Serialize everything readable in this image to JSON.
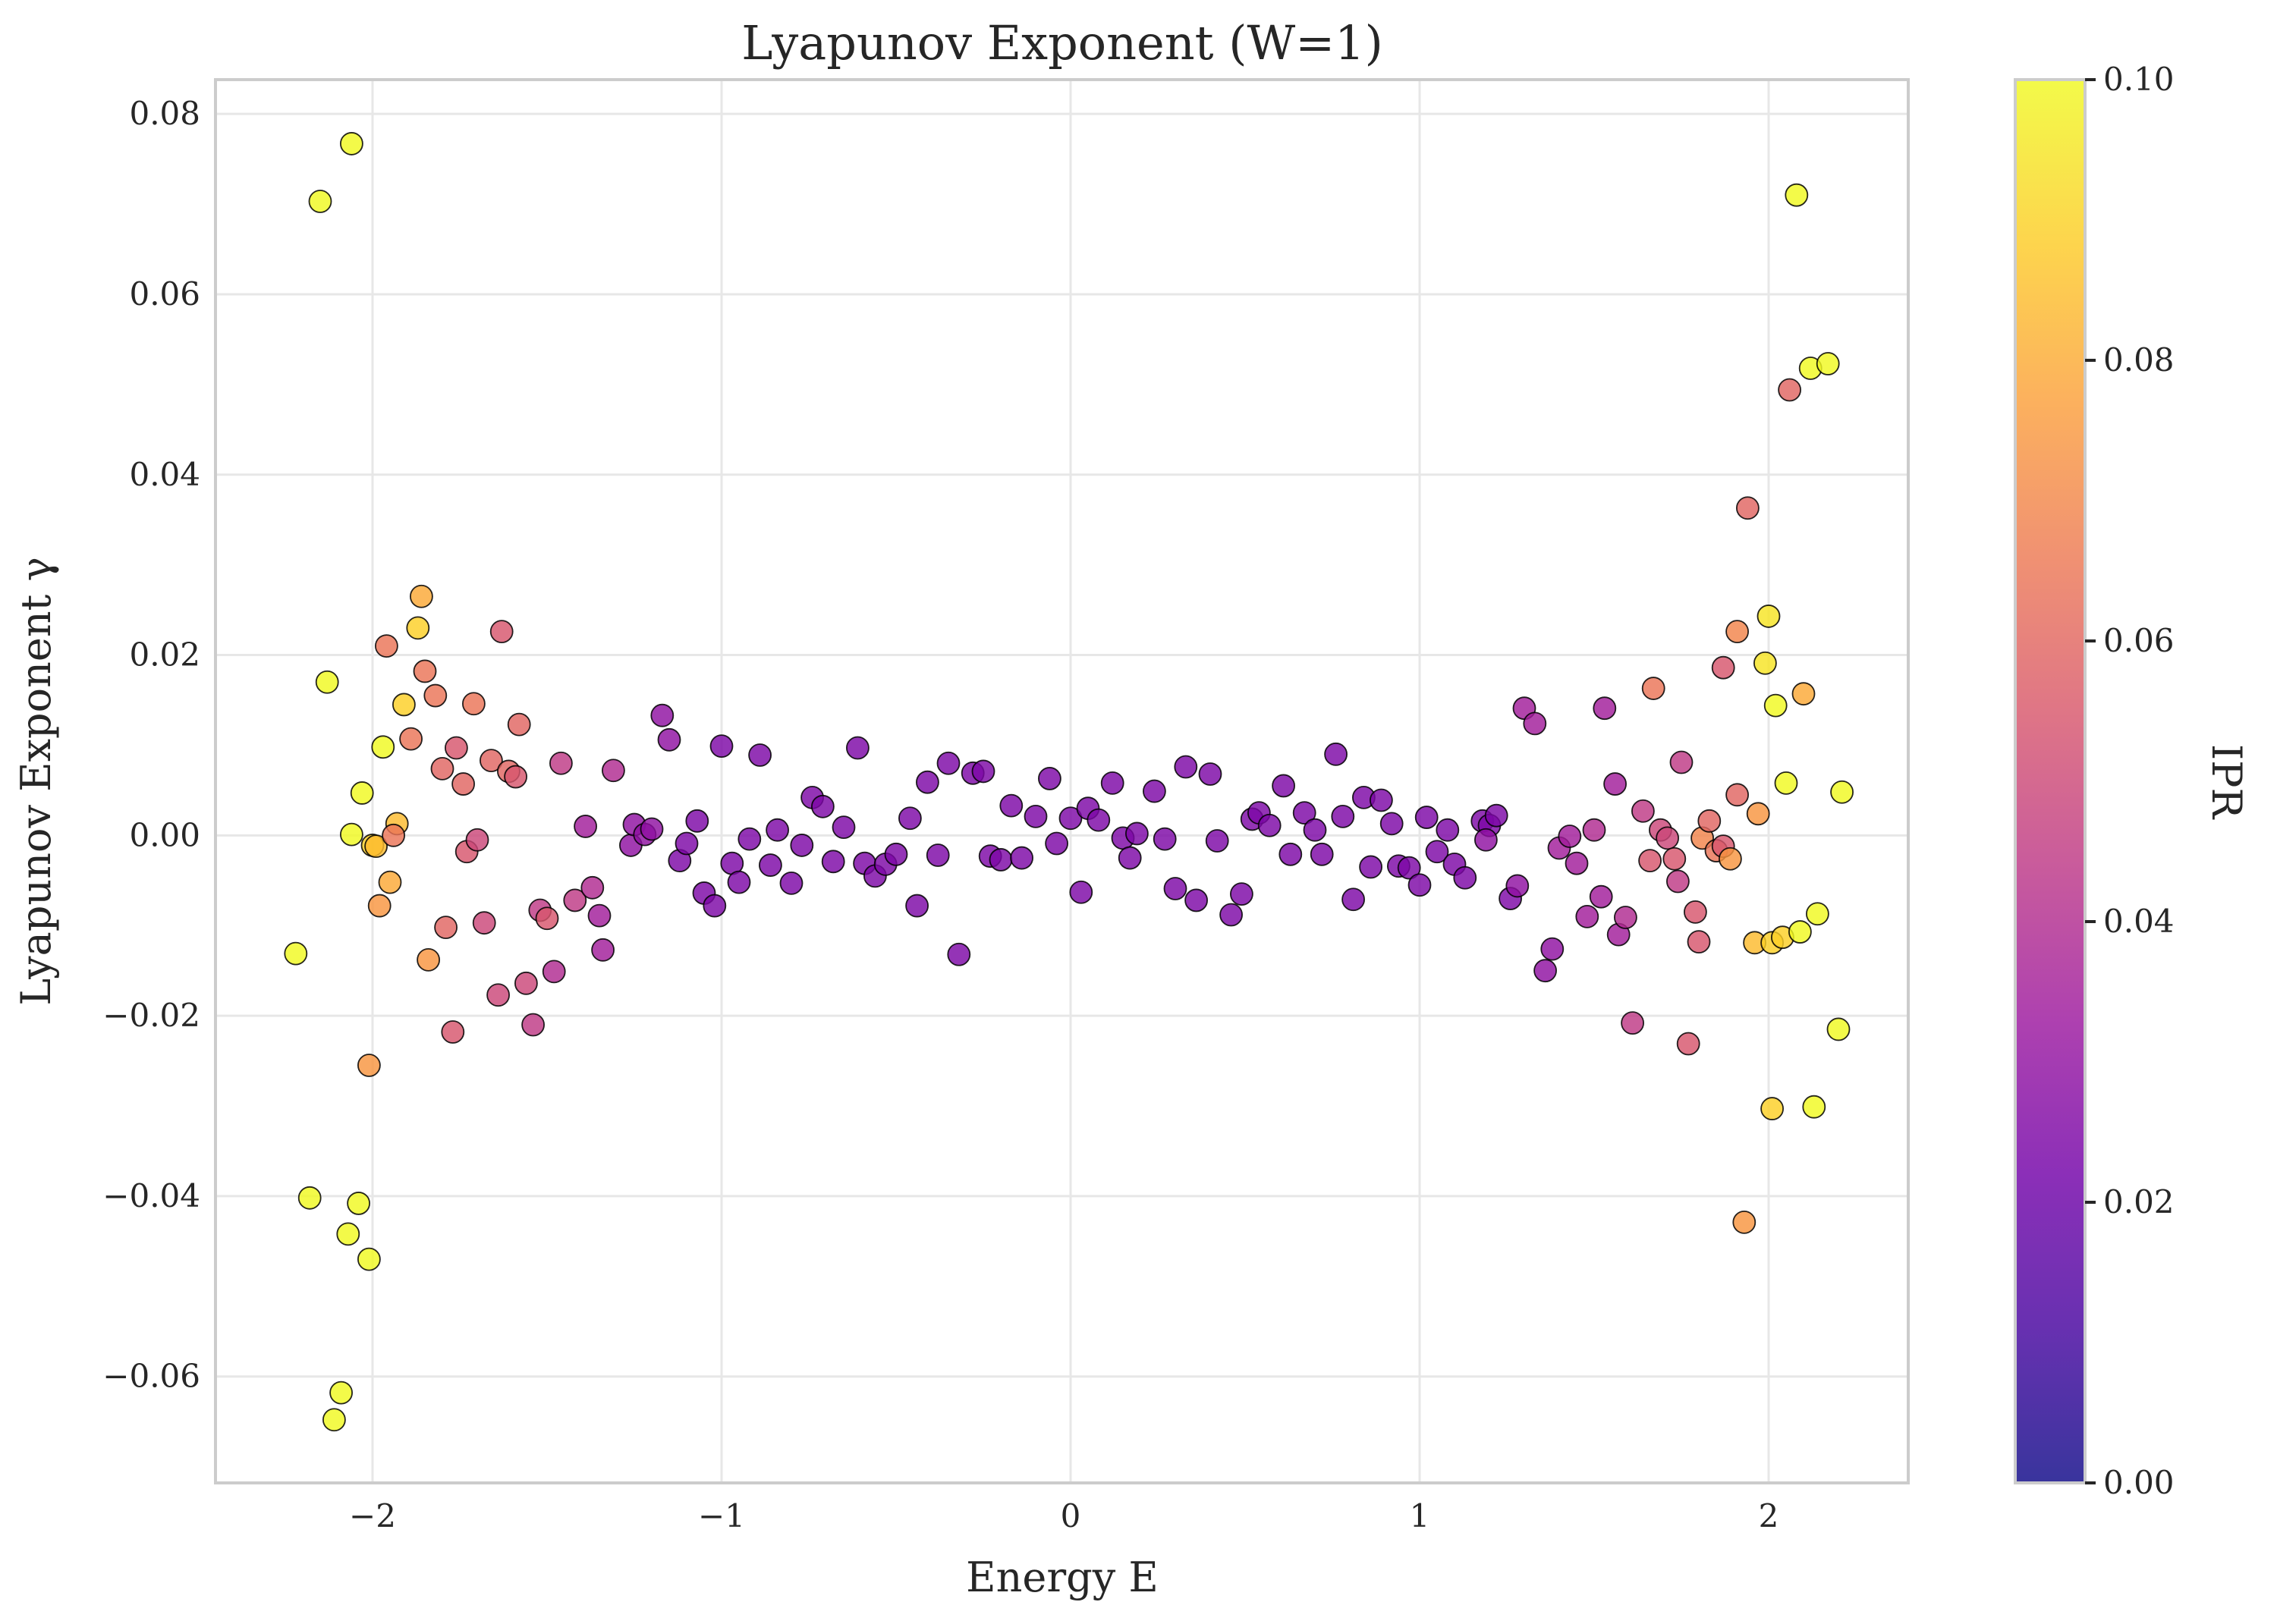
{
  "chart_data": {
    "type": "scatter",
    "title": "Lyapunov Exponent (W=1)",
    "xlabel": "Energy E",
    "ylabel": "Lyapunov Exponent γ",
    "xlim": [
      -2.45,
      2.4
    ],
    "ylim": [
      -0.0718,
      0.0838
    ],
    "xticks": [
      -2,
      -1,
      0,
      1,
      2
    ],
    "xticklabels": [
      "−2",
      "−1",
      "0",
      "1",
      "2"
    ],
    "yticks": [
      -0.06,
      -0.04,
      -0.02,
      0.0,
      0.02,
      0.04,
      0.06,
      0.08
    ],
    "yticklabels": [
      "−0.06",
      "−0.04",
      "−0.02",
      "0.00",
      "0.02",
      "0.04",
      "0.06",
      "0.08"
    ],
    "grid": true,
    "colorbar": {
      "label": "IPR",
      "colormap": "plasma",
      "range": [
        0.0,
        0.1
      ],
      "ticks": [
        0.0,
        0.02,
        0.04,
        0.06,
        0.08,
        0.1
      ],
      "ticklabels": [
        "0.00",
        "0.02",
        "0.04",
        "0.06",
        "0.08",
        "0.10"
      ],
      "colors": [
        "#0d0887",
        "#46039f",
        "#7201a8",
        "#9c179e",
        "#bd3786",
        "#d8576b",
        "#ed7953",
        "#fb9f3a",
        "#fdca26",
        "#f0f921"
      ]
    },
    "points": [
      {
        "x": -2.22,
        "y": -0.0131,
        "c": 0.1
      },
      {
        "x": -2.15,
        "y": 0.0703,
        "c": 0.1
      },
      {
        "x": -2.06,
        "y": 0.0767,
        "c": 0.1
      },
      {
        "x": -2.13,
        "y": 0.017,
        "c": 0.1
      },
      {
        "x": -2.18,
        "y": -0.0402,
        "c": 0.1
      },
      {
        "x": -2.04,
        "y": -0.0408,
        "c": 0.1
      },
      {
        "x": -2.07,
        "y": -0.0442,
        "c": 0.1
      },
      {
        "x": -2.01,
        "y": -0.047,
        "c": 0.1
      },
      {
        "x": -2.09,
        "y": -0.0618,
        "c": 0.1
      },
      {
        "x": -2.11,
        "y": -0.0648,
        "c": 0.1
      },
      {
        "x": -2.06,
        "y": 0.0001,
        "c": 0.1
      },
      {
        "x": -2.03,
        "y": 0.0047,
        "c": 0.1
      },
      {
        "x": -1.97,
        "y": 0.0098,
        "c": 0.1
      },
      {
        "x": -2.0,
        "y": -0.0011,
        "c": 0.09
      },
      {
        "x": -1.99,
        "y": -0.0012,
        "c": 0.085
      },
      {
        "x": -1.93,
        "y": 0.0013,
        "c": 0.085
      },
      {
        "x": -1.91,
        "y": 0.0145,
        "c": 0.09
      },
      {
        "x": -1.87,
        "y": 0.023,
        "c": 0.09
      },
      {
        "x": -1.86,
        "y": 0.0265,
        "c": 0.08
      },
      {
        "x": -1.95,
        "y": -0.0052,
        "c": 0.08
      },
      {
        "x": -1.98,
        "y": -0.0078,
        "c": 0.075
      },
      {
        "x": -2.01,
        "y": -0.0255,
        "c": 0.075
      },
      {
        "x": -1.84,
        "y": -0.0138,
        "c": 0.075
      },
      {
        "x": -1.96,
        "y": 0.021,
        "c": 0.065
      },
      {
        "x": -1.89,
        "y": 0.0107,
        "c": 0.065
      },
      {
        "x": -1.85,
        "y": 0.0182,
        "c": 0.065
      },
      {
        "x": -1.82,
        "y": 0.0155,
        "c": 0.065
      },
      {
        "x": -1.8,
        "y": 0.0074,
        "c": 0.06
      },
      {
        "x": -1.94,
        "y": 0.0,
        "c": 0.065
      },
      {
        "x": -1.79,
        "y": -0.0102,
        "c": 0.06
      },
      {
        "x": -1.77,
        "y": -0.0218,
        "c": 0.055
      },
      {
        "x": -1.76,
        "y": 0.0097,
        "c": 0.055
      },
      {
        "x": -1.74,
        "y": 0.0057,
        "c": 0.06
      },
      {
        "x": -1.71,
        "y": 0.0146,
        "c": 0.065
      },
      {
        "x": -1.73,
        "y": -0.0018,
        "c": 0.055
      },
      {
        "x": -1.7,
        "y": -0.0005,
        "c": 0.05
      },
      {
        "x": -1.68,
        "y": -0.0097,
        "c": 0.05
      },
      {
        "x": -1.66,
        "y": 0.0083,
        "c": 0.06
      },
      {
        "x": -1.64,
        "y": -0.0177,
        "c": 0.05
      },
      {
        "x": -1.63,
        "y": 0.0226,
        "c": 0.055
      },
      {
        "x": -1.61,
        "y": 0.0071,
        "c": 0.06
      },
      {
        "x": -1.59,
        "y": 0.0065,
        "c": 0.055
      },
      {
        "x": -1.58,
        "y": 0.0123,
        "c": 0.06
      },
      {
        "x": -1.56,
        "y": -0.0164,
        "c": 0.05
      },
      {
        "x": -1.54,
        "y": -0.021,
        "c": 0.045
      },
      {
        "x": -1.52,
        "y": -0.0083,
        "c": 0.045
      },
      {
        "x": -1.5,
        "y": -0.0092,
        "c": 0.055
      },
      {
        "x": -1.48,
        "y": -0.0151,
        "c": 0.04
      },
      {
        "x": -1.46,
        "y": 0.008,
        "c": 0.045
      },
      {
        "x": -1.42,
        "y": -0.0072,
        "c": 0.045
      },
      {
        "x": -1.39,
        "y": 0.001,
        "c": 0.035
      },
      {
        "x": -1.37,
        "y": -0.0058,
        "c": 0.04
      },
      {
        "x": -1.35,
        "y": -0.0089,
        "c": 0.035
      },
      {
        "x": -1.34,
        "y": -0.0127,
        "c": 0.035
      },
      {
        "x": -1.31,
        "y": 0.0072,
        "c": 0.04
      },
      {
        "x": -1.26,
        "y": -0.0011,
        "c": 0.03
      },
      {
        "x": -1.25,
        "y": 0.0012,
        "c": 0.03
      },
      {
        "x": -1.22,
        "y": 0.0001,
        "c": 0.03
      },
      {
        "x": -1.2,
        "y": 0.0007,
        "c": 0.03
      },
      {
        "x": -1.17,
        "y": 0.0133,
        "c": 0.03
      },
      {
        "x": -1.15,
        "y": 0.0106,
        "c": 0.03
      },
      {
        "x": -1.12,
        "y": -0.0028,
        "c": 0.025
      },
      {
        "x": -1.1,
        "y": -0.0009,
        "c": 0.025
      },
      {
        "x": -1.07,
        "y": 0.0016,
        "c": 0.025
      },
      {
        "x": -1.05,
        "y": -0.0064,
        "c": 0.025
      },
      {
        "x": -1.02,
        "y": -0.0078,
        "c": 0.025
      },
      {
        "x": -1.0,
        "y": 0.0099,
        "c": 0.025
      },
      {
        "x": -0.97,
        "y": -0.0031,
        "c": 0.025
      },
      {
        "x": -0.95,
        "y": -0.0052,
        "c": 0.025
      },
      {
        "x": -0.92,
        "y": -0.0004,
        "c": 0.025
      },
      {
        "x": -0.89,
        "y": 0.0089,
        "c": 0.025
      },
      {
        "x": -0.86,
        "y": -0.0033,
        "c": 0.025
      },
      {
        "x": -0.84,
        "y": 0.0006,
        "c": 0.025
      },
      {
        "x": -0.8,
        "y": -0.0053,
        "c": 0.025
      },
      {
        "x": -0.77,
        "y": -0.0011,
        "c": 0.025
      },
      {
        "x": -0.74,
        "y": 0.0042,
        "c": 0.025
      },
      {
        "x": -0.71,
        "y": 0.0032,
        "c": 0.025
      },
      {
        "x": -0.68,
        "y": -0.0029,
        "c": 0.025
      },
      {
        "x": -0.65,
        "y": 0.0009,
        "c": 0.025
      },
      {
        "x": -0.61,
        "y": 0.0097,
        "c": 0.025
      },
      {
        "x": -0.59,
        "y": -0.0031,
        "c": 0.025
      },
      {
        "x": -0.56,
        "y": -0.0045,
        "c": 0.025
      },
      {
        "x": -0.53,
        "y": -0.0032,
        "c": 0.025
      },
      {
        "x": -0.5,
        "y": -0.0021,
        "c": 0.025
      },
      {
        "x": -0.46,
        "y": 0.0019,
        "c": 0.025
      },
      {
        "x": -0.44,
        "y": -0.0078,
        "c": 0.025
      },
      {
        "x": -0.41,
        "y": 0.0059,
        "c": 0.025
      },
      {
        "x": -0.38,
        "y": -0.0022,
        "c": 0.025
      },
      {
        "x": -0.35,
        "y": 0.008,
        "c": 0.025
      },
      {
        "x": -0.32,
        "y": -0.0132,
        "c": 0.025
      },
      {
        "x": -0.28,
        "y": 0.0069,
        "c": 0.025
      },
      {
        "x": -0.25,
        "y": 0.0071,
        "c": 0.025
      },
      {
        "x": -0.23,
        "y": -0.0023,
        "c": 0.025
      },
      {
        "x": -0.2,
        "y": -0.0027,
        "c": 0.025
      },
      {
        "x": -0.17,
        "y": 0.0033,
        "c": 0.025
      },
      {
        "x": -0.14,
        "y": -0.0025,
        "c": 0.025
      },
      {
        "x": -0.1,
        "y": 0.0021,
        "c": 0.025
      },
      {
        "x": -0.06,
        "y": 0.0063,
        "c": 0.025
      },
      {
        "x": -0.04,
        "y": -0.0009,
        "c": 0.025
      },
      {
        "x": 0.0,
        "y": 0.0019,
        "c": 0.025
      },
      {
        "x": 0.03,
        "y": -0.0063,
        "c": 0.025
      },
      {
        "x": 0.05,
        "y": 0.003,
        "c": 0.025
      },
      {
        "x": 0.08,
        "y": 0.0017,
        "c": 0.025
      },
      {
        "x": 0.12,
        "y": 0.0058,
        "c": 0.025
      },
      {
        "x": 0.15,
        "y": -0.0003,
        "c": 0.025
      },
      {
        "x": 0.17,
        "y": -0.0025,
        "c": 0.025
      },
      {
        "x": 0.19,
        "y": 0.0002,
        "c": 0.025
      },
      {
        "x": 0.24,
        "y": 0.0049,
        "c": 0.025
      },
      {
        "x": 0.27,
        "y": -0.0004,
        "c": 0.025
      },
      {
        "x": 0.3,
        "y": -0.0059,
        "c": 0.025
      },
      {
        "x": 0.33,
        "y": 0.0076,
        "c": 0.025
      },
      {
        "x": 0.36,
        "y": -0.0072,
        "c": 0.025
      },
      {
        "x": 0.4,
        "y": 0.0068,
        "c": 0.025
      },
      {
        "x": 0.42,
        "y": -0.0006,
        "c": 0.025
      },
      {
        "x": 0.46,
        "y": -0.0088,
        "c": 0.025
      },
      {
        "x": 0.49,
        "y": -0.0065,
        "c": 0.025
      },
      {
        "x": 0.52,
        "y": 0.0018,
        "c": 0.025
      },
      {
        "x": 0.54,
        "y": 0.0025,
        "c": 0.025
      },
      {
        "x": 0.57,
        "y": 0.0011,
        "c": 0.025
      },
      {
        "x": 0.61,
        "y": 0.0055,
        "c": 0.025
      },
      {
        "x": 0.63,
        "y": -0.0021,
        "c": 0.025
      },
      {
        "x": 0.67,
        "y": 0.0025,
        "c": 0.025
      },
      {
        "x": 0.7,
        "y": 0.0006,
        "c": 0.025
      },
      {
        "x": 0.72,
        "y": -0.0021,
        "c": 0.025
      },
      {
        "x": 0.76,
        "y": 0.009,
        "c": 0.025
      },
      {
        "x": 0.78,
        "y": 0.0021,
        "c": 0.025
      },
      {
        "x": 0.81,
        "y": -0.0071,
        "c": 0.025
      },
      {
        "x": 0.84,
        "y": 0.0042,
        "c": 0.025
      },
      {
        "x": 0.86,
        "y": -0.0035,
        "c": 0.025
      },
      {
        "x": 0.89,
        "y": 0.0039,
        "c": 0.025
      },
      {
        "x": 0.92,
        "y": 0.0013,
        "c": 0.025
      },
      {
        "x": 0.94,
        "y": -0.0034,
        "c": 0.025
      },
      {
        "x": 0.97,
        "y": -0.0036,
        "c": 0.025
      },
      {
        "x": 1.0,
        "y": -0.0055,
        "c": 0.025
      },
      {
        "x": 1.02,
        "y": 0.002,
        "c": 0.025
      },
      {
        "x": 1.05,
        "y": -0.0018,
        "c": 0.025
      },
      {
        "x": 1.08,
        "y": 0.0006,
        "c": 0.025
      },
      {
        "x": 1.1,
        "y": -0.0032,
        "c": 0.025
      },
      {
        "x": 1.13,
        "y": -0.0047,
        "c": 0.025
      },
      {
        "x": 1.18,
        "y": 0.0016,
        "c": 0.025
      },
      {
        "x": 1.2,
        "y": 0.0011,
        "c": 0.025
      },
      {
        "x": 1.22,
        "y": 0.0022,
        "c": 0.025
      },
      {
        "x": 1.19,
        "y": -0.0005,
        "c": 0.03
      },
      {
        "x": 1.26,
        "y": -0.007,
        "c": 0.025
      },
      {
        "x": 1.28,
        "y": -0.0056,
        "c": 0.03
      },
      {
        "x": 1.3,
        "y": 0.0141,
        "c": 0.035
      },
      {
        "x": 1.33,
        "y": 0.0124,
        "c": 0.035
      },
      {
        "x": 1.36,
        "y": -0.015,
        "c": 0.03
      },
      {
        "x": 1.38,
        "y": -0.0126,
        "c": 0.03
      },
      {
        "x": 1.4,
        "y": -0.0014,
        "c": 0.035
      },
      {
        "x": 1.43,
        "y": -0.0001,
        "c": 0.035
      },
      {
        "x": 1.45,
        "y": -0.0031,
        "c": 0.035
      },
      {
        "x": 1.48,
        "y": -0.009,
        "c": 0.035
      },
      {
        "x": 1.5,
        "y": 0.0006,
        "c": 0.04
      },
      {
        "x": 1.52,
        "y": -0.0068,
        "c": 0.035
      },
      {
        "x": 1.53,
        "y": 0.0141,
        "c": 0.035
      },
      {
        "x": 1.56,
        "y": 0.0057,
        "c": 0.035
      },
      {
        "x": 1.57,
        "y": -0.011,
        "c": 0.035
      },
      {
        "x": 1.59,
        "y": -0.0091,
        "c": 0.04
      },
      {
        "x": 1.61,
        "y": -0.0208,
        "c": 0.045
      },
      {
        "x": 1.64,
        "y": 0.0027,
        "c": 0.045
      },
      {
        "x": 1.66,
        "y": -0.0028,
        "c": 0.055
      },
      {
        "x": 1.67,
        "y": 0.0163,
        "c": 0.065
      },
      {
        "x": 1.69,
        "y": 0.0006,
        "c": 0.05
      },
      {
        "x": 1.71,
        "y": -0.0003,
        "c": 0.05
      },
      {
        "x": 1.73,
        "y": -0.0026,
        "c": 0.055
      },
      {
        "x": 1.74,
        "y": -0.0051,
        "c": 0.045
      },
      {
        "x": 1.75,
        "y": 0.0081,
        "c": 0.045
      },
      {
        "x": 1.77,
        "y": -0.0231,
        "c": 0.055
      },
      {
        "x": 1.79,
        "y": -0.0085,
        "c": 0.055
      },
      {
        "x": 1.8,
        "y": -0.0118,
        "c": 0.055
      },
      {
        "x": 1.81,
        "y": -0.0003,
        "c": 0.07
      },
      {
        "x": 1.83,
        "y": 0.0016,
        "c": 0.06
      },
      {
        "x": 1.85,
        "y": -0.0017,
        "c": 0.065
      },
      {
        "x": 1.87,
        "y": -0.0012,
        "c": 0.055
      },
      {
        "x": 1.87,
        "y": 0.0186,
        "c": 0.055
      },
      {
        "x": 1.89,
        "y": -0.0026,
        "c": 0.075
      },
      {
        "x": 1.91,
        "y": 0.0045,
        "c": 0.06
      },
      {
        "x": 1.91,
        "y": 0.0226,
        "c": 0.07
      },
      {
        "x": 1.93,
        "y": -0.0429,
        "c": 0.075
      },
      {
        "x": 1.94,
        "y": 0.0363,
        "c": 0.06
      },
      {
        "x": 1.96,
        "y": -0.0119,
        "c": 0.085
      },
      {
        "x": 1.97,
        "y": 0.0024,
        "c": 0.075
      },
      {
        "x": 1.99,
        "y": 0.0191,
        "c": 0.095
      },
      {
        "x": 2.0,
        "y": 0.0243,
        "c": 0.095
      },
      {
        "x": 2.01,
        "y": -0.0119,
        "c": 0.09
      },
      {
        "x": 2.01,
        "y": -0.0303,
        "c": 0.09
      },
      {
        "x": 2.02,
        "y": 0.0144,
        "c": 0.1
      },
      {
        "x": 2.04,
        "y": -0.0113,
        "c": 0.09
      },
      {
        "x": 2.05,
        "y": 0.0058,
        "c": 0.1
      },
      {
        "x": 2.06,
        "y": 0.0494,
        "c": 0.06
      },
      {
        "x": 2.08,
        "y": 0.071,
        "c": 0.1
      },
      {
        "x": 2.09,
        "y": -0.0107,
        "c": 0.1
      },
      {
        "x": 2.1,
        "y": 0.0157,
        "c": 0.08
      },
      {
        "x": 2.12,
        "y": 0.0518,
        "c": 0.1
      },
      {
        "x": 2.13,
        "y": -0.0301,
        "c": 0.1
      },
      {
        "x": 2.14,
        "y": -0.0087,
        "c": 0.1
      },
      {
        "x": 2.17,
        "y": 0.0523,
        "c": 0.1
      },
      {
        "x": 2.2,
        "y": -0.0215,
        "c": 0.1
      },
      {
        "x": 2.21,
        "y": 0.0048,
        "c": 0.1
      }
    ]
  }
}
